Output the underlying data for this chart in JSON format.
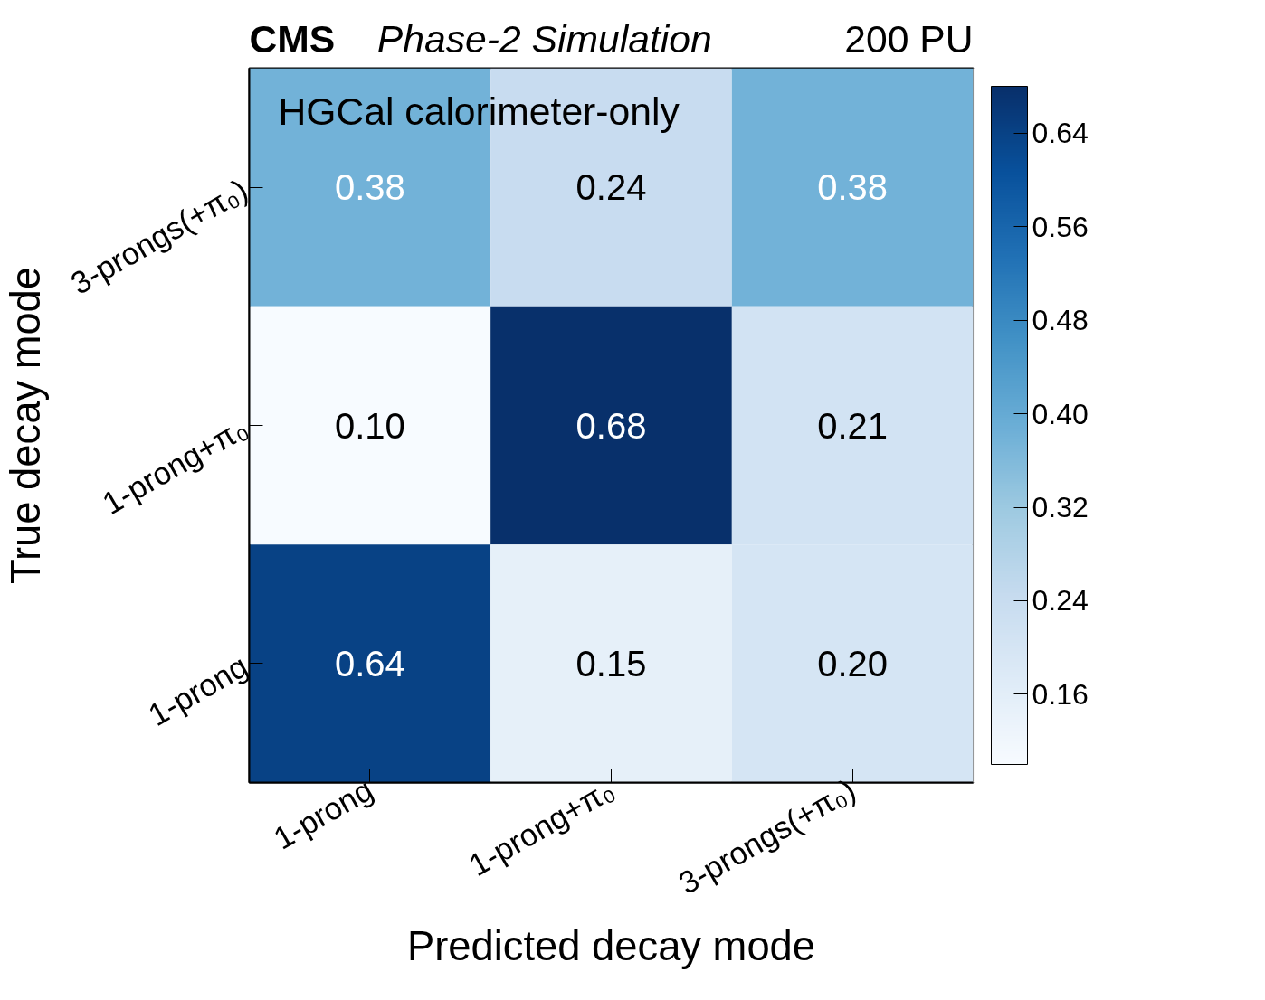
{
  "chart_data": {
    "type": "heatmap",
    "title": "CMS",
    "subtitle": "Phase-2 Simulation",
    "annotations": [
      "200 PU",
      "HGCal calorimeter-only"
    ],
    "xlabel": "Predicted decay mode",
    "ylabel": "True decay mode",
    "categories": [
      "1-prong",
      "1-prong+π₀",
      "3-prongs(+π₀)"
    ],
    "y_categories": [
      "3-prongs(+π₀)",
      "1-prong+π₀",
      "1-prong"
    ],
    "cells": [
      [
        0.38,
        0.24,
        0.38
      ],
      [
        0.1,
        0.68,
        0.21
      ],
      [
        0.64,
        0.15,
        0.2
      ]
    ],
    "cell_labels": [
      [
        "0.38",
        "0.24",
        "0.38"
      ],
      [
        "0.10",
        "0.68",
        "0.21"
      ],
      [
        "0.64",
        "0.15",
        "0.20"
      ]
    ],
    "clim": [
      0.1,
      0.68
    ],
    "cticks": [
      0.16,
      0.24,
      0.32,
      {
        "value": 0.4,
        "label": "0.40"
      },
      0.48,
      0.56,
      0.64
    ]
  }
}
